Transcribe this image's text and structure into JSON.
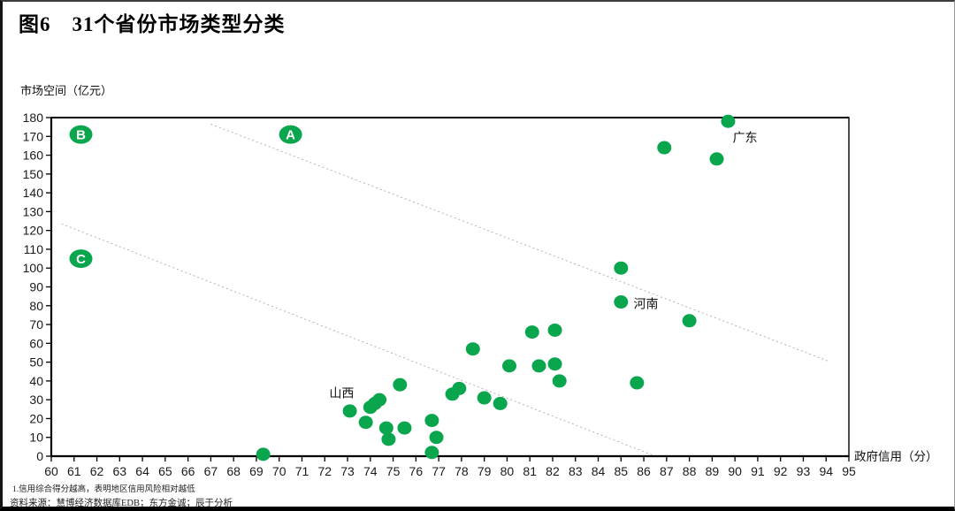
{
  "page": {
    "title": "图6　31个省份市场类型分类",
    "footnote1": "1.信用综合得分越高，表明地区信用风险相对越低",
    "footnote2": "资料来源：慧博经济数据库EDB；东方金诚；辰于分析"
  },
  "chart_data": {
    "type": "scatter",
    "title": "图6 31个省份市场类型分类",
    "xlabel": "政府信用（分）",
    "ylabel": "市场空间（亿元）",
    "xlim": [
      60,
      95
    ],
    "ylim": [
      0,
      180
    ],
    "x_tick_step": 1,
    "y_tick_step": 10,
    "grid": false,
    "legend": "none",
    "point_color": "#0aa64e",
    "boundary_line_color": "#b3b3b3",
    "points": [
      {
        "x": 69.3,
        "y": 1
      },
      {
        "x": 73.1,
        "y": 24
      },
      {
        "x": 73.8,
        "y": 18
      },
      {
        "x": 74.0,
        "y": 26
      },
      {
        "x": 74.2,
        "y": 28
      },
      {
        "x": 74.4,
        "y": 30
      },
      {
        "x": 74.7,
        "y": 15
      },
      {
        "x": 74.8,
        "y": 9
      },
      {
        "x": 75.3,
        "y": 38
      },
      {
        "x": 75.5,
        "y": 15
      },
      {
        "x": 76.7,
        "y": 19
      },
      {
        "x": 76.9,
        "y": 10
      },
      {
        "x": 76.7,
        "y": 2
      },
      {
        "x": 77.6,
        "y": 33
      },
      {
        "x": 77.9,
        "y": 36
      },
      {
        "x": 78.5,
        "y": 57
      },
      {
        "x": 79.0,
        "y": 31
      },
      {
        "x": 79.7,
        "y": 28
      },
      {
        "x": 80.1,
        "y": 48
      },
      {
        "x": 81.1,
        "y": 66
      },
      {
        "x": 81.4,
        "y": 48
      },
      {
        "x": 82.1,
        "y": 67
      },
      {
        "x": 82.1,
        "y": 49
      },
      {
        "x": 82.3,
        "y": 40
      },
      {
        "x": 85.7,
        "y": 39
      },
      {
        "x": 85.0,
        "y": 100
      },
      {
        "x": 85.0,
        "y": 82
      },
      {
        "x": 88.0,
        "y": 72
      },
      {
        "x": 86.9,
        "y": 164
      },
      {
        "x": 89.2,
        "y": 158
      },
      {
        "x": 89.7,
        "y": 178
      }
    ],
    "province_labels": [
      {
        "text": "广东",
        "x": 89.9,
        "y": 169.5,
        "anchor": "start"
      },
      {
        "text": "河南",
        "x": 85.55,
        "y": 81,
        "anchor": "start"
      },
      {
        "text": "山西",
        "x": 72.2,
        "y": 33.5,
        "anchor": "start"
      }
    ],
    "region_markers": [
      {
        "label": "B",
        "x": 61.3,
        "y": 171
      },
      {
        "label": "A",
        "x": 70.5,
        "y": 171
      },
      {
        "label": "C",
        "x": 61.3,
        "y": 105
      }
    ],
    "boundary_lines": [
      {
        "x1": 67.0,
        "y1": 176.5,
        "x2": 94.1,
        "y2": 50.5
      },
      {
        "x1": 60.45,
        "y1": 123.5,
        "x2": 86.5,
        "y2": 0
      }
    ]
  }
}
